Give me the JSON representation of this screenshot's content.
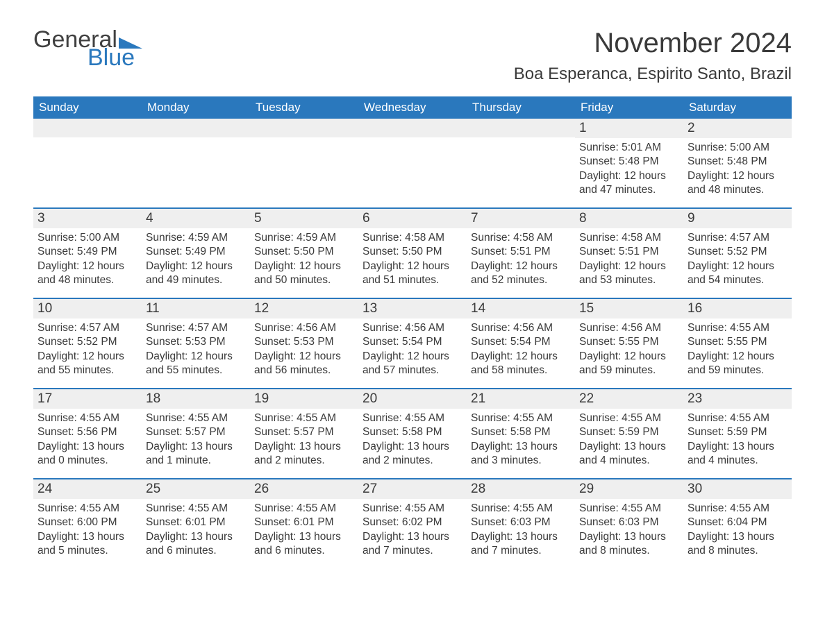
{
  "logo": {
    "word1": "General",
    "word2": "Blue",
    "accent_color": "#2a78bd",
    "text_color": "#404040"
  },
  "header": {
    "month_title": "November 2024",
    "location": "Boa Esperanca, Espirito Santo, Brazil"
  },
  "colors": {
    "header_bg": "#2a78bd",
    "header_text": "#ffffff",
    "daynum_bg": "#efefef",
    "week_border": "#2a78bd",
    "body_text": "#3a3a3a",
    "page_bg": "#ffffff"
  },
  "days_of_week": [
    "Sunday",
    "Monday",
    "Tuesday",
    "Wednesday",
    "Thursday",
    "Friday",
    "Saturday"
  ],
  "weeks": [
    [
      {
        "empty": true
      },
      {
        "empty": true
      },
      {
        "empty": true
      },
      {
        "empty": true
      },
      {
        "empty": true
      },
      {
        "num": "1",
        "sunrise": "Sunrise: 5:01 AM",
        "sunset": "Sunset: 5:48 PM",
        "daylight": "Daylight: 12 hours and 47 minutes."
      },
      {
        "num": "2",
        "sunrise": "Sunrise: 5:00 AM",
        "sunset": "Sunset: 5:48 PM",
        "daylight": "Daylight: 12 hours and 48 minutes."
      }
    ],
    [
      {
        "num": "3",
        "sunrise": "Sunrise: 5:00 AM",
        "sunset": "Sunset: 5:49 PM",
        "daylight": "Daylight: 12 hours and 48 minutes."
      },
      {
        "num": "4",
        "sunrise": "Sunrise: 4:59 AM",
        "sunset": "Sunset: 5:49 PM",
        "daylight": "Daylight: 12 hours and 49 minutes."
      },
      {
        "num": "5",
        "sunrise": "Sunrise: 4:59 AM",
        "sunset": "Sunset: 5:50 PM",
        "daylight": "Daylight: 12 hours and 50 minutes."
      },
      {
        "num": "6",
        "sunrise": "Sunrise: 4:58 AM",
        "sunset": "Sunset: 5:50 PM",
        "daylight": "Daylight: 12 hours and 51 minutes."
      },
      {
        "num": "7",
        "sunrise": "Sunrise: 4:58 AM",
        "sunset": "Sunset: 5:51 PM",
        "daylight": "Daylight: 12 hours and 52 minutes."
      },
      {
        "num": "8",
        "sunrise": "Sunrise: 4:58 AM",
        "sunset": "Sunset: 5:51 PM",
        "daylight": "Daylight: 12 hours and 53 minutes."
      },
      {
        "num": "9",
        "sunrise": "Sunrise: 4:57 AM",
        "sunset": "Sunset: 5:52 PM",
        "daylight": "Daylight: 12 hours and 54 minutes."
      }
    ],
    [
      {
        "num": "10",
        "sunrise": "Sunrise: 4:57 AM",
        "sunset": "Sunset: 5:52 PM",
        "daylight": "Daylight: 12 hours and 55 minutes."
      },
      {
        "num": "11",
        "sunrise": "Sunrise: 4:57 AM",
        "sunset": "Sunset: 5:53 PM",
        "daylight": "Daylight: 12 hours and 55 minutes."
      },
      {
        "num": "12",
        "sunrise": "Sunrise: 4:56 AM",
        "sunset": "Sunset: 5:53 PM",
        "daylight": "Daylight: 12 hours and 56 minutes."
      },
      {
        "num": "13",
        "sunrise": "Sunrise: 4:56 AM",
        "sunset": "Sunset: 5:54 PM",
        "daylight": "Daylight: 12 hours and 57 minutes."
      },
      {
        "num": "14",
        "sunrise": "Sunrise: 4:56 AM",
        "sunset": "Sunset: 5:54 PM",
        "daylight": "Daylight: 12 hours and 58 minutes."
      },
      {
        "num": "15",
        "sunrise": "Sunrise: 4:56 AM",
        "sunset": "Sunset: 5:55 PM",
        "daylight": "Daylight: 12 hours and 59 minutes."
      },
      {
        "num": "16",
        "sunrise": "Sunrise: 4:55 AM",
        "sunset": "Sunset: 5:55 PM",
        "daylight": "Daylight: 12 hours and 59 minutes."
      }
    ],
    [
      {
        "num": "17",
        "sunrise": "Sunrise: 4:55 AM",
        "sunset": "Sunset: 5:56 PM",
        "daylight": "Daylight: 13 hours and 0 minutes."
      },
      {
        "num": "18",
        "sunrise": "Sunrise: 4:55 AM",
        "sunset": "Sunset: 5:57 PM",
        "daylight": "Daylight: 13 hours and 1 minute."
      },
      {
        "num": "19",
        "sunrise": "Sunrise: 4:55 AM",
        "sunset": "Sunset: 5:57 PM",
        "daylight": "Daylight: 13 hours and 2 minutes."
      },
      {
        "num": "20",
        "sunrise": "Sunrise: 4:55 AM",
        "sunset": "Sunset: 5:58 PM",
        "daylight": "Daylight: 13 hours and 2 minutes."
      },
      {
        "num": "21",
        "sunrise": "Sunrise: 4:55 AM",
        "sunset": "Sunset: 5:58 PM",
        "daylight": "Daylight: 13 hours and 3 minutes."
      },
      {
        "num": "22",
        "sunrise": "Sunrise: 4:55 AM",
        "sunset": "Sunset: 5:59 PM",
        "daylight": "Daylight: 13 hours and 4 minutes."
      },
      {
        "num": "23",
        "sunrise": "Sunrise: 4:55 AM",
        "sunset": "Sunset: 5:59 PM",
        "daylight": "Daylight: 13 hours and 4 minutes."
      }
    ],
    [
      {
        "num": "24",
        "sunrise": "Sunrise: 4:55 AM",
        "sunset": "Sunset: 6:00 PM",
        "daylight": "Daylight: 13 hours and 5 minutes."
      },
      {
        "num": "25",
        "sunrise": "Sunrise: 4:55 AM",
        "sunset": "Sunset: 6:01 PM",
        "daylight": "Daylight: 13 hours and 6 minutes."
      },
      {
        "num": "26",
        "sunrise": "Sunrise: 4:55 AM",
        "sunset": "Sunset: 6:01 PM",
        "daylight": "Daylight: 13 hours and 6 minutes."
      },
      {
        "num": "27",
        "sunrise": "Sunrise: 4:55 AM",
        "sunset": "Sunset: 6:02 PM",
        "daylight": "Daylight: 13 hours and 7 minutes."
      },
      {
        "num": "28",
        "sunrise": "Sunrise: 4:55 AM",
        "sunset": "Sunset: 6:03 PM",
        "daylight": "Daylight: 13 hours and 7 minutes."
      },
      {
        "num": "29",
        "sunrise": "Sunrise: 4:55 AM",
        "sunset": "Sunset: 6:03 PM",
        "daylight": "Daylight: 13 hours and 8 minutes."
      },
      {
        "num": "30",
        "sunrise": "Sunrise: 4:55 AM",
        "sunset": "Sunset: 6:04 PM",
        "daylight": "Daylight: 13 hours and 8 minutes."
      }
    ]
  ]
}
